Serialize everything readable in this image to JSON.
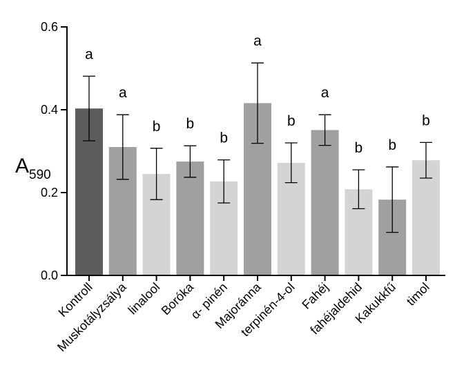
{
  "chart_data": {
    "type": "bar",
    "categories": [
      "Kontroll",
      "Muskotályzsálya",
      "linalool",
      "Boróka",
      "α- pinén",
      "Majoránna",
      "terpinén-4-ol",
      "Fahéj",
      "fahéjaldehid",
      "Kakukkfű",
      "timol"
    ],
    "values": [
      0.403,
      0.31,
      0.245,
      0.275,
      0.227,
      0.416,
      0.272,
      0.351,
      0.208,
      0.183,
      0.278
    ],
    "errors": [
      0.078,
      0.078,
      0.062,
      0.038,
      0.052,
      0.097,
      0.048,
      0.037,
      0.047,
      0.079,
      0.043
    ],
    "significance": [
      "a",
      "a",
      "b",
      "b",
      "b",
      "a",
      "b",
      "a",
      "b",
      "b",
      "b"
    ],
    "bar_colors": [
      "#5c5c5c",
      "#a0a0a0",
      "#d4d4d4",
      "#a0a0a0",
      "#d4d4d4",
      "#a0a0a0",
      "#d4d4d4",
      "#a0a0a0",
      "#d4d4d4",
      "#a0a0a0",
      "#d4d4d4"
    ],
    "ylabel": "A",
    "ylabel_sub": "590",
    "ylim": [
      0,
      0.6
    ],
    "yticks": [
      "0.0",
      "0.2",
      "0.4",
      "0.6"
    ],
    "grid": false,
    "legend": "none"
  }
}
